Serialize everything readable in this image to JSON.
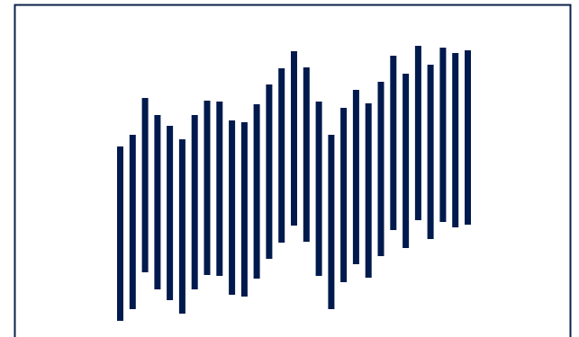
{
  "chart_data": {
    "type": "bar",
    "title": "",
    "xlabel": "",
    "ylabel": "",
    "grid": false,
    "legend": "none",
    "bar_color": "#001a4d",
    "frame_color": "#0b2148",
    "ylim": [
      0,
      375
    ],
    "bars": [
      {
        "low": 18,
        "high": 212
      },
      {
        "low": 31,
        "high": 225
      },
      {
        "low": 72,
        "high": 266
      },
      {
        "low": 53,
        "high": 247
      },
      {
        "low": 41,
        "high": 235
      },
      {
        "low": 26,
        "high": 220
      },
      {
        "low": 53,
        "high": 247
      },
      {
        "low": 69,
        "high": 263
      },
      {
        "low": 68,
        "high": 262
      },
      {
        "low": 47,
        "high": 241
      },
      {
        "low": 45,
        "high": 239
      },
      {
        "low": 65,
        "high": 259
      },
      {
        "low": 87,
        "high": 281
      },
      {
        "low": 105,
        "high": 299
      },
      {
        "low": 124,
        "high": 318
      },
      {
        "low": 106,
        "high": 300
      },
      {
        "low": 68,
        "high": 262
      },
      {
        "low": 31,
        "high": 225
      },
      {
        "low": 61,
        "high": 255
      },
      {
        "low": 81,
        "high": 275
      },
      {
        "low": 66,
        "high": 260
      },
      {
        "low": 90,
        "high": 284
      },
      {
        "low": 119,
        "high": 313
      },
      {
        "low": 99,
        "high": 293
      },
      {
        "low": 130,
        "high": 324
      },
      {
        "low": 109,
        "high": 303
      },
      {
        "low": 128,
        "high": 322
      },
      {
        "low": 122,
        "high": 316
      },
      {
        "low": 125,
        "high": 319
      }
    ]
  }
}
